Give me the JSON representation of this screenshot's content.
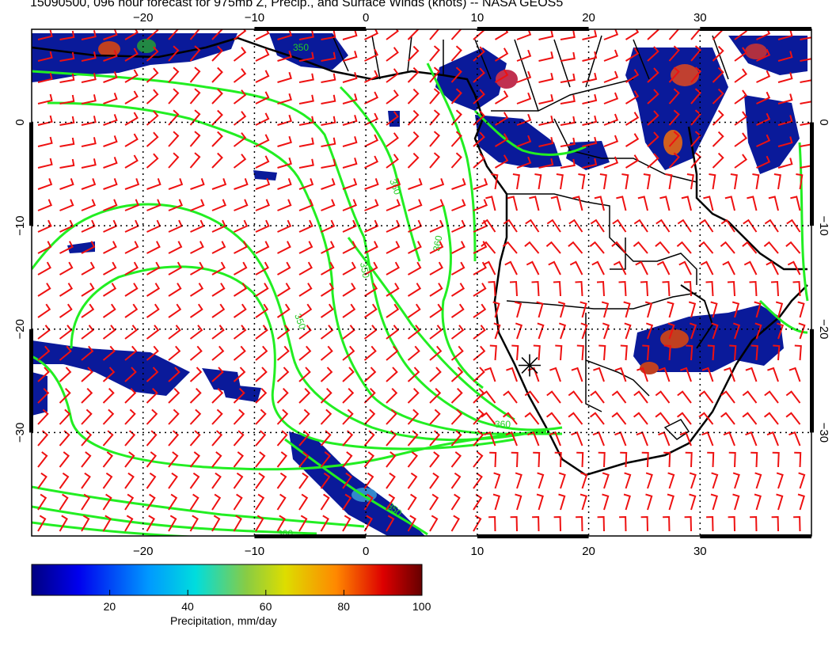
{
  "title": "15090500, 096 hour forecast for 975mb Z, Precip., and Surface Winds (knots) -- NASA GEOS5",
  "map": {
    "lon_min": -30,
    "lon_max": 40,
    "lat_min": -40,
    "lat_max": 9,
    "lon_ticks": [
      -20,
      -10,
      0,
      10,
      20,
      30
    ],
    "lat_ticks": [
      0,
      -10,
      -20,
      -30
    ],
    "top_labels": [
      "−20",
      "−10",
      "0",
      "10",
      "20",
      "30"
    ],
    "bottom_labels": [
      "−20",
      "−10",
      "0",
      "10",
      "20",
      "30"
    ],
    "left_labels": [
      "0",
      "−10",
      "−20",
      "−30"
    ],
    "right_labels": [
      "0",
      "−10",
      "−20",
      "−30"
    ],
    "contour_labels": [
      "350",
      "360",
      "350",
      "360",
      "350",
      "360",
      "350",
      "360"
    ],
    "marker_lon": 14.7,
    "marker_lat": -23.5,
    "colors": {
      "contour": "#22ee22",
      "wind": "#ee1111",
      "coast": "#000000"
    }
  },
  "colorbar": {
    "ticks": [
      "20",
      "40",
      "60",
      "80",
      "100"
    ],
    "label": "Precipitation, mm/day",
    "min": 0,
    "max": 100
  }
}
